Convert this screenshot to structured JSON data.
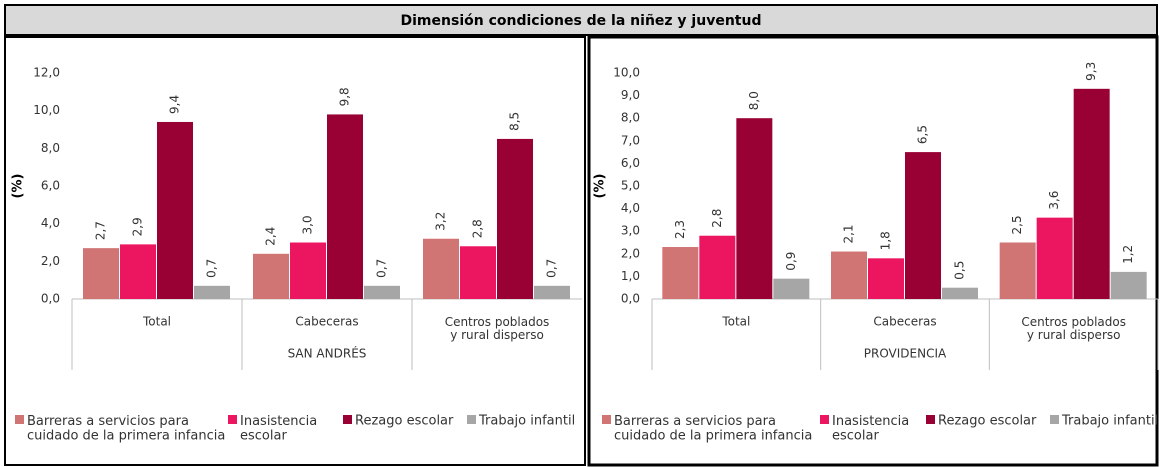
{
  "title": "Dimensión condiciones de la niñez y juventud",
  "chart_data": [
    {
      "type": "bar",
      "xlabel": "SAN ANDRÉS",
      "ylabel": "(%)",
      "categories": [
        "Total",
        "Cabeceras",
        "Centros poblados\ny rural disperso"
      ],
      "series": [
        {
          "name": "Barreras a servicios para\ncuidado de la primera infancia",
          "color": "#d07474",
          "values": [
            2.7,
            2.4,
            3.2
          ],
          "value_labels": [
            "2,7",
            "2,4",
            "3,2"
          ]
        },
        {
          "name": "Inasistencia\nescolar",
          "color": "#ec1660",
          "values": [
            2.9,
            3.0,
            2.8
          ],
          "value_labels": [
            "2,9",
            "3,0",
            "2,8"
          ]
        },
        {
          "name": "Rezago escolar",
          "color": "#990033",
          "values": [
            9.4,
            9.8,
            8.5
          ],
          "value_labels": [
            "9,4",
            "9,8",
            "8,5"
          ]
        },
        {
          "name": "Trabajo infantil",
          "color": "#a6a6a6",
          "values": [
            0.7,
            0.7,
            0.7
          ],
          "value_labels": [
            "0,7",
            "0,7",
            "0,7"
          ]
        }
      ],
      "ylim": [
        0,
        12
      ],
      "yticks": [
        {
          "value": 0,
          "label": "0,0"
        },
        {
          "value": 2,
          "label": "2,0"
        },
        {
          "value": 4,
          "label": "4,0"
        },
        {
          "value": 6,
          "label": "6,0"
        },
        {
          "value": 8,
          "label": "8,0"
        },
        {
          "value": 10,
          "label": "10,0"
        },
        {
          "value": 12,
          "label": "12,0"
        }
      ],
      "grid": false,
      "legend": "bottom"
    },
    {
      "type": "bar",
      "xlabel": "PROVIDENCIA",
      "ylabel": "(%)",
      "categories": [
        "Total",
        "Cabeceras",
        "Centros poblados\ny rural disperso"
      ],
      "series": [
        {
          "name": "Barreras a servicios para\ncuidado de la primera infancia",
          "color": "#d07474",
          "values": [
            2.3,
            2.1,
            2.5
          ],
          "value_labels": [
            "2,3",
            "2,1",
            "2,5"
          ]
        },
        {
          "name": "Inasistencia\nescolar",
          "color": "#ec1660",
          "values": [
            2.8,
            1.8,
            3.6
          ],
          "value_labels": [
            "2,8",
            "1,8",
            "3,6"
          ]
        },
        {
          "name": "Rezago escolar",
          "color": "#990033",
          "values": [
            8.0,
            6.5,
            9.3
          ],
          "value_labels": [
            "8,0",
            "6,5",
            "9,3"
          ]
        },
        {
          "name": "Trabajo infantil",
          "color": "#a6a6a6",
          "values": [
            0.9,
            0.5,
            1.2
          ],
          "value_labels": [
            "0,9",
            "0,5",
            "1,2"
          ]
        }
      ],
      "ylim": [
        0,
        10
      ],
      "yticks": [
        {
          "value": 0,
          "label": "0,0"
        },
        {
          "value": 1,
          "label": "1,0"
        },
        {
          "value": 2,
          "label": "2,0"
        },
        {
          "value": 3,
          "label": "3,0"
        },
        {
          "value": 4,
          "label": "4,0"
        },
        {
          "value": 5,
          "label": "5,0"
        },
        {
          "value": 6,
          "label": "6,0"
        },
        {
          "value": 7,
          "label": "7,0"
        },
        {
          "value": 8,
          "label": "8,0"
        },
        {
          "value": 9,
          "label": "9,0"
        },
        {
          "value": 10,
          "label": "10,0"
        }
      ],
      "grid": false,
      "legend": "bottom"
    }
  ]
}
